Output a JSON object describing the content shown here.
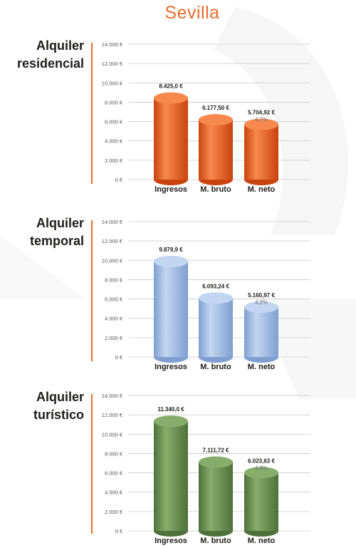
{
  "page": {
    "title": "Sevilla"
  },
  "chart_data": [
    {
      "type": "bar",
      "title_lines": [
        "Alquiler",
        "residencial"
      ],
      "categories": [
        "Ingresos",
        "M. bruto",
        "M. neto"
      ],
      "values": [
        8425.0,
        6177.5,
        5704.92
      ],
      "value_labels": [
        "8.425,0 €",
        "6.177,50 €",
        "5.704,92 €"
      ],
      "percent_labels": [
        "",
        "",
        "4,7%"
      ],
      "yticks": [
        "0 €",
        "2.000 €",
        "4.000 €",
        "6.000 €",
        "8.000 €",
        "10.000 €",
        "12.000 €",
        "14.000 €"
      ],
      "ylim": [
        0,
        14000
      ],
      "color": "#e8531b",
      "color_light": "#f7894f",
      "color_dark": "#c9430f"
    },
    {
      "type": "bar",
      "title_lines": [
        "Alquiler",
        "temporal"
      ],
      "categories": [
        "Ingresos",
        "M. bruto",
        "M. neto"
      ],
      "values": [
        9879.9,
        6093.24,
        5160.97
      ],
      "value_labels": [
        "9.879,9 €",
        "6.093,24 €",
        "5.160,97 €"
      ],
      "percent_labels": [
        "",
        "",
        "4,2%"
      ],
      "yticks": [
        "0 €",
        "2.000 €",
        "4.000 €",
        "6.000 €",
        "8.000 €",
        "10.000 €",
        "12.000 €",
        "14.000 €"
      ],
      "ylim": [
        0,
        14000
      ],
      "color": "#9dbce6",
      "color_light": "#c3d6f1",
      "color_dark": "#7e9fd0"
    },
    {
      "type": "bar",
      "title_lines": [
        "Alquiler",
        "turístico"
      ],
      "categories": [
        "Ingresos",
        "M. bruto",
        "M. neto"
      ],
      "values": [
        11340.0,
        7111.72,
        6023.63
      ],
      "value_labels": [
        "11.340,0 €",
        "7.111,72 €",
        "6.023,63 €"
      ],
      "percent_labels": [
        "",
        "",
        "4,9%"
      ],
      "yticks": [
        "0 €",
        "2.000 €",
        "4.000 €",
        "6.000 €",
        "8.000 €",
        "10.000 €",
        "12.000 €",
        "14.000 €"
      ],
      "ylim": [
        0,
        14000
      ],
      "color": "#62884a",
      "color_light": "#86ad6c",
      "color_dark": "#4e7139"
    }
  ]
}
